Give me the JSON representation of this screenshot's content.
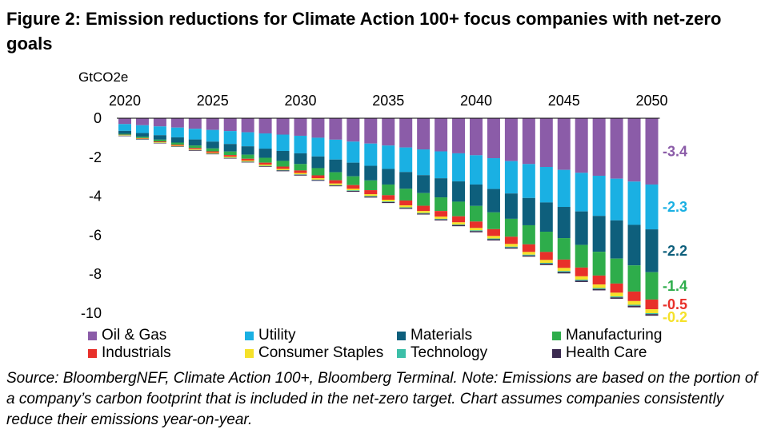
{
  "figure": {
    "title": "Figure 2: Emission reductions for Climate Action 100+ focus companies with net-zero goals",
    "source_note": "Source: BloombergNEF, Climate Action 100+, Bloomberg Terminal. Note: Emissions are based on the portion of a company’s carbon footprint that is included in the net-zero target. Chart assumes companies consistently reduce their emissions year-on-year."
  },
  "chart_data": {
    "type": "bar",
    "stacked": true,
    "title": "",
    "xlabel": "",
    "ylabel": "GtCO2e",
    "ylim": [
      -10,
      0
    ],
    "y_ticks": [
      0,
      -2,
      -4,
      -6,
      -8,
      -10
    ],
    "y_tick_labels": [
      "0",
      "-2",
      "-4",
      "-6",
      "-8",
      "-10"
    ],
    "x_axis_position": "top",
    "categories": [
      2020,
      2021,
      2022,
      2023,
      2024,
      2025,
      2026,
      2027,
      2028,
      2029,
      2030,
      2031,
      2032,
      2033,
      2034,
      2035,
      2036,
      2037,
      2038,
      2039,
      2040,
      2041,
      2042,
      2043,
      2044,
      2045,
      2046,
      2047,
      2048,
      2049,
      2050
    ],
    "x_tick_labels": [
      {
        "year": 2020,
        "label": "2020"
      },
      {
        "year": 2025,
        "label": "2025"
      },
      {
        "year": 2030,
        "label": "2030"
      },
      {
        "year": 2035,
        "label": "2035"
      },
      {
        "year": 2040,
        "label": "2040"
      },
      {
        "year": 2045,
        "label": "2045"
      },
      {
        "year": 2050,
        "label": "2050"
      }
    ],
    "series": [
      {
        "name": "Oil & Gas",
        "color": "#8b5ca8",
        "values": [
          -0.3,
          -0.36,
          -0.42,
          -0.48,
          -0.54,
          -0.6,
          -0.66,
          -0.72,
          -0.78,
          -0.84,
          -0.9,
          -1.0,
          -1.1,
          -1.2,
          -1.3,
          -1.4,
          -1.5,
          -1.6,
          -1.7,
          -1.8,
          -1.9,
          -2.05,
          -2.2,
          -2.35,
          -2.5,
          -2.65,
          -2.8,
          -2.95,
          -3.1,
          -3.25,
          -3.4
        ]
      },
      {
        "name": "Utility",
        "color": "#1ab0e3",
        "values": [
          -0.35,
          -0.4,
          -0.45,
          -0.5,
          -0.55,
          -0.6,
          -0.66,
          -0.72,
          -0.78,
          -0.84,
          -0.9,
          -0.96,
          -1.02,
          -1.08,
          -1.14,
          -1.2,
          -1.26,
          -1.32,
          -1.38,
          -1.44,
          -1.5,
          -1.58,
          -1.66,
          -1.74,
          -1.82,
          -1.9,
          -1.98,
          -2.06,
          -2.14,
          -2.22,
          -2.3
        ]
      },
      {
        "name": "Materials",
        "color": "#0e5f7c",
        "values": [
          -0.15,
          -0.19,
          -0.23,
          -0.27,
          -0.31,
          -0.35,
          -0.39,
          -0.43,
          -0.47,
          -0.51,
          -0.55,
          -0.6,
          -0.65,
          -0.7,
          -0.75,
          -0.8,
          -0.86,
          -0.92,
          -0.98,
          -1.04,
          -1.1,
          -1.2,
          -1.3,
          -1.4,
          -1.5,
          -1.6,
          -1.72,
          -1.84,
          -1.96,
          -2.08,
          -2.2
        ]
      },
      {
        "name": "Manufacturing",
        "color": "#2ead4b",
        "values": [
          -0.05,
          -0.07,
          -0.09,
          -0.11,
          -0.13,
          -0.15,
          -0.18,
          -0.21,
          -0.25,
          -0.29,
          -0.33,
          -0.37,
          -0.41,
          -0.45,
          -0.5,
          -0.55,
          -0.6,
          -0.65,
          -0.7,
          -0.75,
          -0.8,
          -0.86,
          -0.92,
          -0.98,
          -1.04,
          -1.1,
          -1.16,
          -1.22,
          -1.28,
          -1.34,
          -1.4
        ]
      },
      {
        "name": "Industrials",
        "color": "#e8302a",
        "values": [
          -0.02,
          -0.03,
          -0.04,
          -0.05,
          -0.06,
          -0.07,
          -0.08,
          -0.09,
          -0.1,
          -0.12,
          -0.13,
          -0.15,
          -0.17,
          -0.19,
          -0.21,
          -0.23,
          -0.25,
          -0.27,
          -0.29,
          -0.31,
          -0.33,
          -0.35,
          -0.37,
          -0.39,
          -0.41,
          -0.43,
          -0.45,
          -0.46,
          -0.47,
          -0.49,
          -0.5
        ]
      },
      {
        "name": "Consumer Staples",
        "color": "#f5e12a",
        "values": [
          -0.02,
          -0.02,
          -0.03,
          -0.03,
          -0.04,
          -0.04,
          -0.05,
          -0.05,
          -0.06,
          -0.06,
          -0.07,
          -0.07,
          -0.08,
          -0.08,
          -0.09,
          -0.09,
          -0.1,
          -0.1,
          -0.11,
          -0.11,
          -0.12,
          -0.13,
          -0.14,
          -0.14,
          -0.15,
          -0.16,
          -0.17,
          -0.18,
          -0.19,
          -0.19,
          -0.2
        ]
      },
      {
        "name": "Technology",
        "color": "#3cbfa8",
        "values": [
          -0.01,
          -0.01,
          -0.01,
          -0.01,
          -0.01,
          -0.01,
          -0.02,
          -0.02,
          -0.02,
          -0.02,
          -0.02,
          -0.02,
          -0.02,
          -0.03,
          -0.03,
          -0.03,
          -0.03,
          -0.03,
          -0.03,
          -0.03,
          -0.04,
          -0.04,
          -0.04,
          -0.04,
          -0.04,
          -0.05,
          -0.05,
          -0.05,
          -0.05,
          -0.05,
          -0.05
        ]
      },
      {
        "name": "Health Care",
        "color": "#3b2a50",
        "values": [
          -0.02,
          -0.02,
          -0.02,
          -0.02,
          -0.03,
          -0.03,
          -0.03,
          -0.03,
          -0.03,
          -0.04,
          -0.04,
          -0.04,
          -0.04,
          -0.04,
          -0.05,
          -0.05,
          -0.05,
          -0.05,
          -0.05,
          -0.06,
          -0.06,
          -0.06,
          -0.06,
          -0.06,
          -0.07,
          -0.07,
          -0.07,
          -0.07,
          -0.07,
          -0.08,
          -0.08
        ]
      }
    ],
    "end_labels": [
      {
        "series": "Oil & Gas",
        "label": "-3.4",
        "color": "#8b5ca8"
      },
      {
        "series": "Utility",
        "label": "-2.3",
        "color": "#1ab0e3"
      },
      {
        "series": "Materials",
        "label": "-2.2",
        "color": "#0e5f7c"
      },
      {
        "series": "Manufacturing",
        "label": "-1.4",
        "color": "#2ead4b"
      },
      {
        "series": "Industrials",
        "label": "-0.5",
        "color": "#e8302a"
      },
      {
        "series": "Consumer Staples",
        "label": "-0.2",
        "color": "#f5e12a"
      }
    ],
    "legend": {
      "placement": "bottom",
      "entries": [
        "Oil & Gas",
        "Utility",
        "Materials",
        "Manufacturing",
        "Industrials",
        "Consumer Staples",
        "Technology",
        "Health Care"
      ]
    },
    "grid": false
  }
}
